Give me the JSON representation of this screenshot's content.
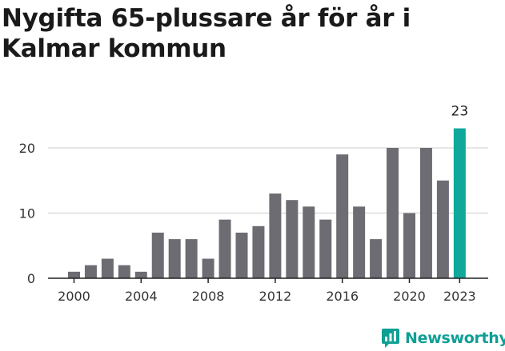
{
  "title": "Nygifta 65-plussare år för år i Kalmar kommun",
  "brand": {
    "name": "Newsworthy",
    "icon": "newsworthy-logo-icon",
    "color": "#0f9f94"
  },
  "chart_data": {
    "type": "bar",
    "title": "Nygifta 65-plussare år för år i Kalmar kommun",
    "xlabel": "",
    "ylabel": "",
    "categories": [
      "2000",
      "2001",
      "2002",
      "2003",
      "2004",
      "2005",
      "2006",
      "2007",
      "2008",
      "2009",
      "2010",
      "2011",
      "2012",
      "2013",
      "2014",
      "2015",
      "2016",
      "2017",
      "2018",
      "2019",
      "2020",
      "2021",
      "2022",
      "2023"
    ],
    "values": [
      1,
      2,
      3,
      2,
      1,
      7,
      6,
      6,
      3,
      9,
      7,
      8,
      13,
      12,
      11,
      9,
      19,
      11,
      6,
      20,
      10,
      20,
      15,
      23
    ],
    "xticks": [
      "2000",
      "2004",
      "2008",
      "2012",
      "2016",
      "2020",
      "2023"
    ],
    "yticks": [
      0,
      10,
      20
    ],
    "ylim": [
      0,
      23
    ],
    "grid": true,
    "highlight": {
      "category": "2023",
      "label": "23",
      "color": "#0fa89b"
    },
    "bar_color": "#6d6c72",
    "grid_color": "#dddddd"
  }
}
